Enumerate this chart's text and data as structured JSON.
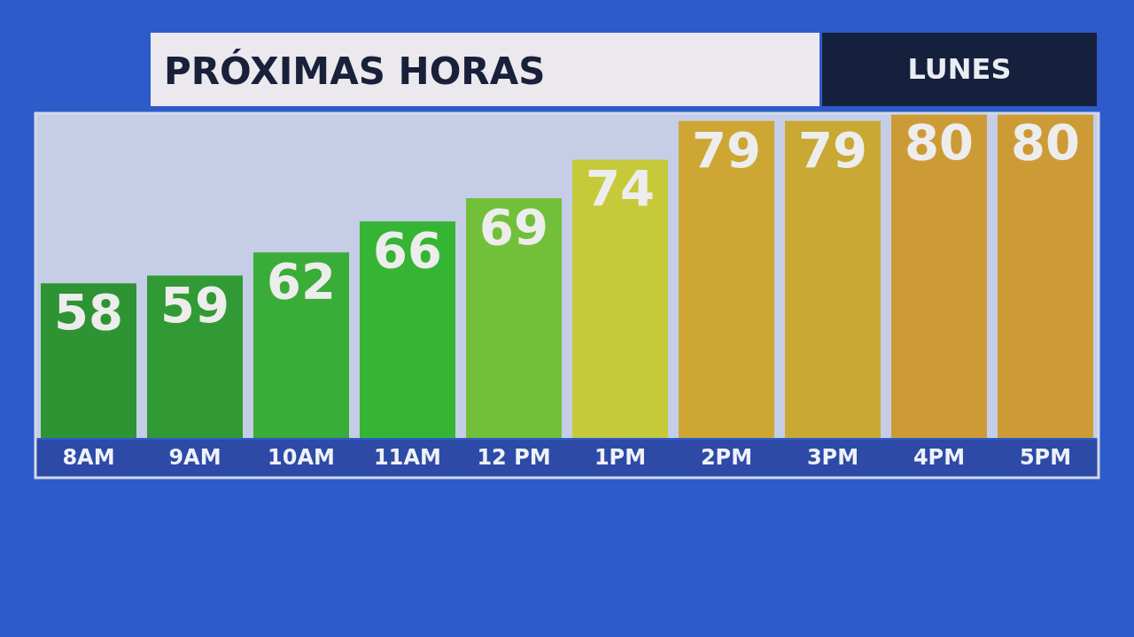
{
  "chart_data": {
    "type": "bar",
    "title": "PRÓXIMAS HORAS",
    "subtitle": "LUNES",
    "categories": [
      "8AM",
      "9AM",
      "10AM",
      "11AM",
      "12 PM",
      "1PM",
      "2PM",
      "3PM",
      "4PM",
      "5PM"
    ],
    "values": [
      58,
      59,
      62,
      66,
      69,
      74,
      79,
      79,
      80,
      80
    ],
    "colors": [
      "#2e9433",
      "#329a34",
      "#3aac38",
      "#36b534",
      "#72c03a",
      "#c6c93a",
      "#cda634",
      "#c9a834",
      "#cd9b36",
      "#cd9b36"
    ],
    "ylim": [
      38,
      80
    ],
    "data_labels": true,
    "tick_labels": "x"
  }
}
